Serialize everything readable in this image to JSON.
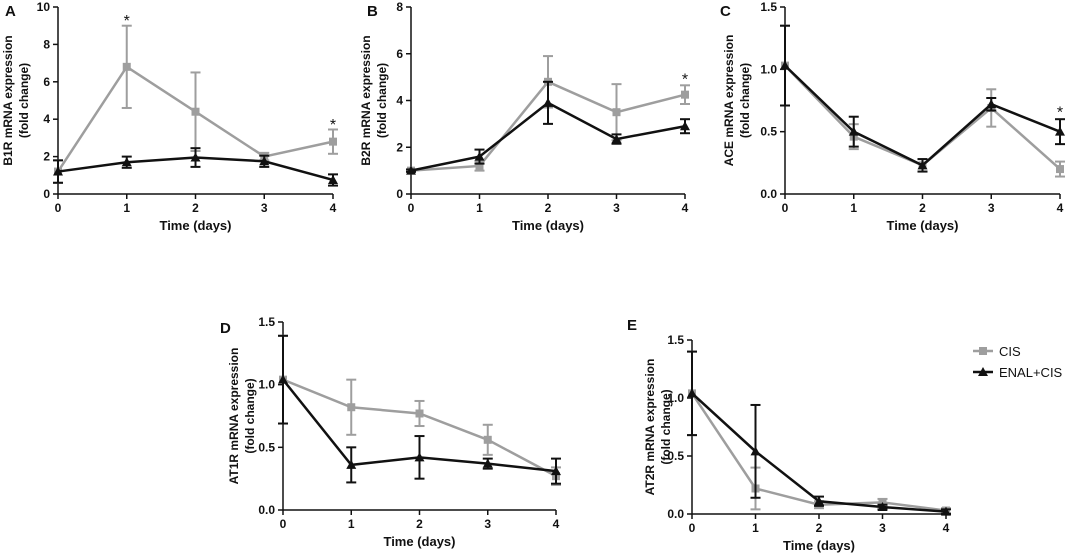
{
  "colors": {
    "CIS": "#9e9e9e",
    "ENAL+CIS": "#111111"
  },
  "legend": {
    "items": [
      "CIS",
      "ENAL+CIS"
    ]
  },
  "chart_data": [
    {
      "panel": "A",
      "type": "line",
      "xlabel": "Time (days)",
      "ylabel_lines": [
        "B1R mRNA expression",
        "(fold change)"
      ],
      "x": [
        0,
        1,
        2,
        3,
        4
      ],
      "xticks": [
        "0",
        "1",
        "2",
        "3",
        "4"
      ],
      "ylim": [
        0,
        10
      ],
      "yticks": [
        "0",
        "2",
        "4",
        "6",
        "8",
        "10"
      ],
      "series": [
        {
          "name": "CIS",
          "values": [
            1.2,
            6.8,
            4.4,
            2.0,
            2.8
          ],
          "errors": [
            0.6,
            2.2,
            2.1,
            0.2,
            0.65
          ],
          "marker": "square"
        },
        {
          "name": "ENAL+CIS",
          "values": [
            1.2,
            1.7,
            1.95,
            1.75,
            0.75
          ],
          "errors": [
            0.6,
            0.3,
            0.5,
            0.3,
            0.3
          ],
          "marker": "triangle"
        }
      ],
      "annotations": [
        {
          "x": 1,
          "text": "*",
          "y": 9.3
        },
        {
          "x": 4,
          "text": "*",
          "y": 3.75
        }
      ]
    },
    {
      "panel": "B",
      "type": "line",
      "xlabel": "Time (days)",
      "ylabel_lines": [
        "B2R mRNA expression",
        "(fold change)"
      ],
      "x": [
        0,
        1,
        2,
        3,
        4
      ],
      "xticks": [
        "0",
        "1",
        "2",
        "3",
        "4"
      ],
      "ylim": [
        0,
        8
      ],
      "yticks": [
        "0",
        "2",
        "4",
        "6",
        "8"
      ],
      "series": [
        {
          "name": "CIS",
          "values": [
            1.0,
            1.2,
            4.8,
            3.5,
            4.25
          ],
          "errors": [
            0.05,
            0.2,
            1.1,
            1.2,
            0.4
          ],
          "marker": "square"
        },
        {
          "name": "ENAL+CIS",
          "values": [
            1.0,
            1.6,
            3.9,
            2.35,
            2.9
          ],
          "errors": [
            0.05,
            0.3,
            0.9,
            0.2,
            0.3
          ],
          "marker": "triangle"
        }
      ],
      "annotations": [
        {
          "x": 4,
          "text": "*",
          "y": 4.95
        }
      ]
    },
    {
      "panel": "C",
      "type": "line",
      "xlabel": "Time (days)",
      "ylabel_lines": [
        "ACE mRNA expression",
        "(fold change)"
      ],
      "x": [
        0,
        1,
        2,
        3,
        4
      ],
      "xticks": [
        "0",
        "1",
        "2",
        "3",
        "4"
      ],
      "ylim": [
        0,
        1.5
      ],
      "yticks": [
        "0.0",
        "0.5",
        "1.0",
        "1.5"
      ],
      "series": [
        {
          "name": "CIS",
          "values": [
            1.03,
            0.46,
            0.23,
            0.69,
            0.2
          ],
          "errors": [
            0.32,
            0.1,
            0.05,
            0.15,
            0.06
          ],
          "marker": "square"
        },
        {
          "name": "ENAL+CIS",
          "values": [
            1.03,
            0.5,
            0.23,
            0.72,
            0.5
          ],
          "errors": [
            0.32,
            0.12,
            0.05,
            0.05,
            0.1
          ],
          "marker": "triangle"
        }
      ],
      "annotations": [
        {
          "x": 4,
          "text": "*",
          "y": 0.66
        }
      ]
    },
    {
      "panel": "D",
      "type": "line",
      "xlabel": "Time (days)",
      "ylabel_lines": [
        "AT1R mRNA expression",
        "(fold change)"
      ],
      "x": [
        0,
        1,
        2,
        3,
        4
      ],
      "xticks": [
        "0",
        "1",
        "2",
        "3",
        "4"
      ],
      "ylim": [
        0,
        1.5
      ],
      "yticks": [
        "0.0",
        "0.5",
        "1.0",
        "1.5"
      ],
      "series": [
        {
          "name": "CIS",
          "values": [
            1.04,
            0.82,
            0.77,
            0.56,
            0.27
          ],
          "errors": [
            0.35,
            0.22,
            0.1,
            0.12,
            0.07
          ],
          "marker": "square"
        },
        {
          "name": "ENAL+CIS",
          "values": [
            1.04,
            0.36,
            0.42,
            0.37,
            0.31
          ],
          "errors": [
            0.35,
            0.14,
            0.17,
            0.04,
            0.1
          ],
          "marker": "triangle"
        }
      ],
      "annotations": []
    },
    {
      "panel": "E",
      "type": "line",
      "xlabel": "Time (days)",
      "ylabel_lines": [
        "AT2R mRNA expression",
        "(fold change)"
      ],
      "x": [
        0,
        1,
        2,
        3,
        4
      ],
      "xticks": [
        "0",
        "1",
        "2",
        "3",
        "4"
      ],
      "ylim": [
        0,
        1.5
      ],
      "yticks": [
        "0.0",
        "0.5",
        "1.0",
        "1.5"
      ],
      "series": [
        {
          "name": "CIS",
          "values": [
            1.04,
            0.22,
            0.08,
            0.1,
            0.03
          ],
          "errors": [
            0.36,
            0.18,
            0.03,
            0.03,
            0.02
          ],
          "marker": "square"
        },
        {
          "name": "ENAL+CIS",
          "values": [
            1.04,
            0.54,
            0.11,
            0.06,
            0.02
          ],
          "errors": [
            0.36,
            0.4,
            0.04,
            0.02,
            0.02
          ],
          "marker": "triangle"
        }
      ],
      "annotations": []
    }
  ]
}
